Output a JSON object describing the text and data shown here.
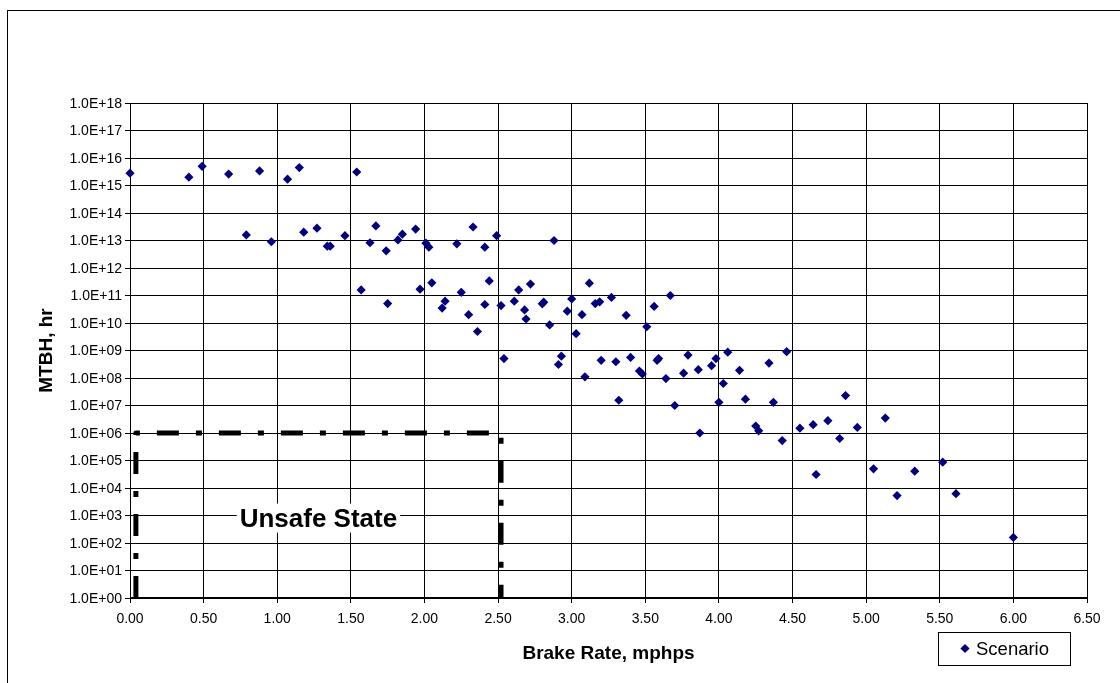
{
  "chart_data": {
    "type": "scatter",
    "xlabel": "Brake Rate, mphps",
    "ylabel": "MTBH, hr",
    "xlim": [
      0,
      6.5
    ],
    "ylim": [
      1,
      1e+18
    ],
    "log": "y",
    "grid": true,
    "legend": "bottom right",
    "marker": "diamond",
    "xticks": [
      {
        "value": 0,
        "label": "0.00"
      },
      {
        "value": 0.5,
        "label": "0.50"
      },
      {
        "value": 1,
        "label": "1.00"
      },
      {
        "value": 1.5,
        "label": "1.50"
      },
      {
        "value": 2,
        "label": "2.00"
      },
      {
        "value": 2.5,
        "label": "2.50"
      },
      {
        "value": 3,
        "label": "3.00"
      },
      {
        "value": 3.5,
        "label": "3.50"
      },
      {
        "value": 4,
        "label": "4.00"
      },
      {
        "value": 4.5,
        "label": "4.50"
      },
      {
        "value": 5,
        "label": "5.00"
      },
      {
        "value": 5.5,
        "label": "5.50"
      },
      {
        "value": 6,
        "label": "6.00"
      },
      {
        "value": 6.5,
        "label": "6.50"
      }
    ],
    "yticks": [
      {
        "value": 1,
        "label": "1.0E+00"
      },
      {
        "value": 10,
        "label": "1.0E+01"
      },
      {
        "value": 100,
        "label": "1.0E+02"
      },
      {
        "value": 1000,
        "label": "1.0E+03"
      },
      {
        "value": 10000,
        "label": "1.0E+04"
      },
      {
        "value": 100000,
        "label": "1.0E+05"
      },
      {
        "value": 1000000,
        "label": "1.0E+06"
      },
      {
        "value": 10000000.0,
        "label": "1.0E+07"
      },
      {
        "value": 100000000.0,
        "label": "1.0E+08"
      },
      {
        "value": 1000000000.0,
        "label": "1.0E+09"
      },
      {
        "value": 10000000000.0,
        "label": "1.0E+10"
      },
      {
        "value": 100000000000.0,
        "label": "1.0E+11"
      },
      {
        "value": 1000000000000.0,
        "label": "1.0E+12"
      },
      {
        "value": 10000000000000.0,
        "label": "1.0E+13"
      },
      {
        "value": 100000000000000.0,
        "label": "1.0E+14"
      },
      {
        "value": 1000000000000000.0,
        "label": "1.0E+15"
      },
      {
        "value": 1e+16,
        "label": "1.0E+16"
      },
      {
        "value": 1e+17,
        "label": "1.0E+17"
      },
      {
        "value": 1e+18,
        "label": "1.0E+18"
      }
    ],
    "annotations": [
      "Unsafe State"
    ],
    "series": [
      {
        "name": "Scenario",
        "color": "#000080",
        "x": [
          0.0,
          0.4,
          0.49,
          0.67,
          0.88,
          1.07,
          1.15,
          1.54,
          0.79,
          0.96,
          1.18,
          1.27,
          1.34,
          1.36,
          1.46,
          1.57,
          1.63,
          1.67,
          1.74,
          1.75,
          1.82,
          1.85,
          1.94,
          1.97,
          2.01,
          2.03,
          2.05,
          2.12,
          2.14,
          2.22,
          2.25,
          2.3,
          2.33,
          2.36,
          2.41,
          2.41,
          2.44,
          2.49,
          2.52,
          2.54,
          2.61,
          2.64,
          2.68,
          2.69,
          2.72,
          2.8,
          2.81,
          2.85,
          2.88,
          2.91,
          2.93,
          2.97,
          3.0,
          3.03,
          3.07,
          3.09,
          3.12,
          3.16,
          3.19,
          3.2,
          3.27,
          3.3,
          3.32,
          3.37,
          3.4,
          3.46,
          3.48,
          3.51,
          3.56,
          3.58,
          3.59,
          3.64,
          3.67,
          3.7,
          3.76,
          3.79,
          3.86,
          3.87,
          3.95,
          3.98,
          4.0,
          4.03,
          4.06,
          4.14,
          4.18,
          4.25,
          4.27,
          4.34,
          4.37,
          4.43,
          4.46,
          4.55,
          4.64,
          4.66,
          4.74,
          4.82,
          4.86,
          4.94,
          5.05,
          5.13,
          5.21,
          5.33,
          5.52,
          5.61,
          6.0
        ],
        "values": [
          2800000000000000.0,
          2000000000000000.0,
          5000000000000000.0,
          2600000000000000.0,
          3400000000000000.0,
          1700000000000000.0,
          4500000000000000.0,
          3100000000000000.0,
          16000000000000.0,
          9000000000000.0,
          20000000000000.0,
          28000000000000.0,
          6200000000000.0,
          6200000000000.0,
          15000000000000.0,
          160000000000.0,
          8300000000000.0,
          34000000000000.0,
          4200000000000.0,
          51000000000.0,
          10500000000000.0,
          17000000000000.0,
          26000000000000.0,
          170000000000.0,
          8000000000000.0,
          5700000000000.0,
          290000000000.0,
          35000000000.0,
          62000000000.0,
          7600000000000.0,
          130000000000.0,
          20000000000.0,
          31000000000000.0,
          4900000000.0,
          5700000000000.0,
          47000000000.0,
          340000000000.0,
          15000000000000.0,
          43000000000.0,
          510000000.0,
          62000000000.0,
          160000000000.0,
          30000000000.0,
          14000000000.0,
          260000000000.0,
          50000000000.0,
          57000000000.0,
          8500000000.0,
          10000000000000.0,
          310000000.0,
          620000000.0,
          27000000000.0,
          75000000000.0,
          4100000000.0,
          20000000000.0,
          110000000.0,
          280000000000.0,
          51000000000.0,
          59000000000.0,
          440000000.0,
          85000000000.0,
          390000000.0,
          15500000.0,
          19000000000.0,
          560000000.0,
          180000000.0,
          140000000.0,
          7300000000.0,
          40000000000.0,
          440000000.0,
          510000000.0,
          95000000.0,
          100000000000.0,
          10000000.0,
          150000000.0,
          680000000.0,
          200000000.0,
          1000000.0,
          280000000.0,
          510000000.0,
          13000000.0,
          63000000.0,
          870000000.0,
          190000000.0,
          17000000.0,
          1800000.0,
          1200000.0,
          350000000.0,
          13000000.0,
          530000.0,
          910000000.0,
          1500000.0,
          2000000.0,
          31000.0,
          2800000.0,
          630000.0,
          23000000.0,
          1600000.0,
          50000.0,
          3500000.0,
          5300.0,
          41000.0,
          87000.0,
          6200.0,
          160
        ]
      },
      {
        "type": "line",
        "color": "#000000",
        "line_style": "dashed",
        "marker": "none",
        "x": [
          0.04,
          0.04,
          2.52,
          2.52
        ],
        "values": [
          1,
          1000000,
          1000000,
          1
        ]
      }
    ]
  }
}
